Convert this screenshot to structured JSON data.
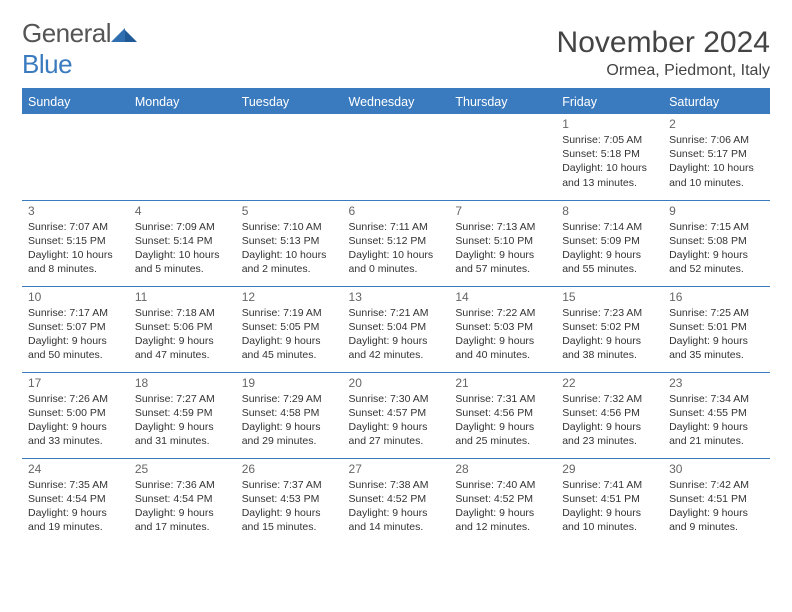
{
  "brand": {
    "name_a": "General",
    "name_b": "Blue"
  },
  "title": "November 2024",
  "location": "Ormea, Piedmont, Italy",
  "colors": {
    "accent": "#3a7bbf",
    "text": "#333333",
    "muted": "#666666",
    "bg": "#ffffff"
  },
  "typography": {
    "title_fontsize": 30,
    "location_fontsize": 16,
    "header_fontsize": 12.5,
    "daynum_fontsize": 12,
    "body_fontsize": 10.5
  },
  "calendar": {
    "type": "table",
    "columns": [
      "Sunday",
      "Monday",
      "Tuesday",
      "Wednesday",
      "Thursday",
      "Friday",
      "Saturday"
    ],
    "weeks": [
      [
        null,
        null,
        null,
        null,
        null,
        {
          "n": "1",
          "sr": "Sunrise: 7:05 AM",
          "ss": "Sunset: 5:18 PM",
          "d1": "Daylight: 10 hours",
          "d2": "and 13 minutes."
        },
        {
          "n": "2",
          "sr": "Sunrise: 7:06 AM",
          "ss": "Sunset: 5:17 PM",
          "d1": "Daylight: 10 hours",
          "d2": "and 10 minutes."
        }
      ],
      [
        {
          "n": "3",
          "sr": "Sunrise: 7:07 AM",
          "ss": "Sunset: 5:15 PM",
          "d1": "Daylight: 10 hours",
          "d2": "and 8 minutes."
        },
        {
          "n": "4",
          "sr": "Sunrise: 7:09 AM",
          "ss": "Sunset: 5:14 PM",
          "d1": "Daylight: 10 hours",
          "d2": "and 5 minutes."
        },
        {
          "n": "5",
          "sr": "Sunrise: 7:10 AM",
          "ss": "Sunset: 5:13 PM",
          "d1": "Daylight: 10 hours",
          "d2": "and 2 minutes."
        },
        {
          "n": "6",
          "sr": "Sunrise: 7:11 AM",
          "ss": "Sunset: 5:12 PM",
          "d1": "Daylight: 10 hours",
          "d2": "and 0 minutes."
        },
        {
          "n": "7",
          "sr": "Sunrise: 7:13 AM",
          "ss": "Sunset: 5:10 PM",
          "d1": "Daylight: 9 hours",
          "d2": "and 57 minutes."
        },
        {
          "n": "8",
          "sr": "Sunrise: 7:14 AM",
          "ss": "Sunset: 5:09 PM",
          "d1": "Daylight: 9 hours",
          "d2": "and 55 minutes."
        },
        {
          "n": "9",
          "sr": "Sunrise: 7:15 AM",
          "ss": "Sunset: 5:08 PM",
          "d1": "Daylight: 9 hours",
          "d2": "and 52 minutes."
        }
      ],
      [
        {
          "n": "10",
          "sr": "Sunrise: 7:17 AM",
          "ss": "Sunset: 5:07 PM",
          "d1": "Daylight: 9 hours",
          "d2": "and 50 minutes."
        },
        {
          "n": "11",
          "sr": "Sunrise: 7:18 AM",
          "ss": "Sunset: 5:06 PM",
          "d1": "Daylight: 9 hours",
          "d2": "and 47 minutes."
        },
        {
          "n": "12",
          "sr": "Sunrise: 7:19 AM",
          "ss": "Sunset: 5:05 PM",
          "d1": "Daylight: 9 hours",
          "d2": "and 45 minutes."
        },
        {
          "n": "13",
          "sr": "Sunrise: 7:21 AM",
          "ss": "Sunset: 5:04 PM",
          "d1": "Daylight: 9 hours",
          "d2": "and 42 minutes."
        },
        {
          "n": "14",
          "sr": "Sunrise: 7:22 AM",
          "ss": "Sunset: 5:03 PM",
          "d1": "Daylight: 9 hours",
          "d2": "and 40 minutes."
        },
        {
          "n": "15",
          "sr": "Sunrise: 7:23 AM",
          "ss": "Sunset: 5:02 PM",
          "d1": "Daylight: 9 hours",
          "d2": "and 38 minutes."
        },
        {
          "n": "16",
          "sr": "Sunrise: 7:25 AM",
          "ss": "Sunset: 5:01 PM",
          "d1": "Daylight: 9 hours",
          "d2": "and 35 minutes."
        }
      ],
      [
        {
          "n": "17",
          "sr": "Sunrise: 7:26 AM",
          "ss": "Sunset: 5:00 PM",
          "d1": "Daylight: 9 hours",
          "d2": "and 33 minutes."
        },
        {
          "n": "18",
          "sr": "Sunrise: 7:27 AM",
          "ss": "Sunset: 4:59 PM",
          "d1": "Daylight: 9 hours",
          "d2": "and 31 minutes."
        },
        {
          "n": "19",
          "sr": "Sunrise: 7:29 AM",
          "ss": "Sunset: 4:58 PM",
          "d1": "Daylight: 9 hours",
          "d2": "and 29 minutes."
        },
        {
          "n": "20",
          "sr": "Sunrise: 7:30 AM",
          "ss": "Sunset: 4:57 PM",
          "d1": "Daylight: 9 hours",
          "d2": "and 27 minutes."
        },
        {
          "n": "21",
          "sr": "Sunrise: 7:31 AM",
          "ss": "Sunset: 4:56 PM",
          "d1": "Daylight: 9 hours",
          "d2": "and 25 minutes."
        },
        {
          "n": "22",
          "sr": "Sunrise: 7:32 AM",
          "ss": "Sunset: 4:56 PM",
          "d1": "Daylight: 9 hours",
          "d2": "and 23 minutes."
        },
        {
          "n": "23",
          "sr": "Sunrise: 7:34 AM",
          "ss": "Sunset: 4:55 PM",
          "d1": "Daylight: 9 hours",
          "d2": "and 21 minutes."
        }
      ],
      [
        {
          "n": "24",
          "sr": "Sunrise: 7:35 AM",
          "ss": "Sunset: 4:54 PM",
          "d1": "Daylight: 9 hours",
          "d2": "and 19 minutes."
        },
        {
          "n": "25",
          "sr": "Sunrise: 7:36 AM",
          "ss": "Sunset: 4:54 PM",
          "d1": "Daylight: 9 hours",
          "d2": "and 17 minutes."
        },
        {
          "n": "26",
          "sr": "Sunrise: 7:37 AM",
          "ss": "Sunset: 4:53 PM",
          "d1": "Daylight: 9 hours",
          "d2": "and 15 minutes."
        },
        {
          "n": "27",
          "sr": "Sunrise: 7:38 AM",
          "ss": "Sunset: 4:52 PM",
          "d1": "Daylight: 9 hours",
          "d2": "and 14 minutes."
        },
        {
          "n": "28",
          "sr": "Sunrise: 7:40 AM",
          "ss": "Sunset: 4:52 PM",
          "d1": "Daylight: 9 hours",
          "d2": "and 12 minutes."
        },
        {
          "n": "29",
          "sr": "Sunrise: 7:41 AM",
          "ss": "Sunset: 4:51 PM",
          "d1": "Daylight: 9 hours",
          "d2": "and 10 minutes."
        },
        {
          "n": "30",
          "sr": "Sunrise: 7:42 AM",
          "ss": "Sunset: 4:51 PM",
          "d1": "Daylight: 9 hours",
          "d2": "and 9 minutes."
        }
      ]
    ]
  }
}
